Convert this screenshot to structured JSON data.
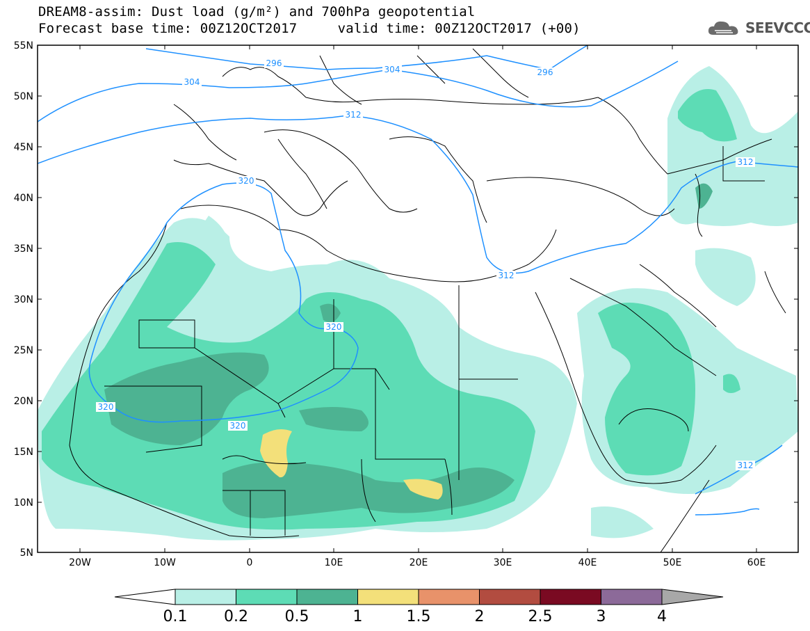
{
  "header": {
    "title_line1": "DREAM8-assim: Dust load (g/m²) and 700hPa geopotential",
    "title_line2": "Forecast base time: 00Z12OCT2017     valid time: 00Z12OCT2017 (+00)"
  },
  "logo": {
    "text": "SEEVCCC",
    "icon": "cloud-icon"
  },
  "map": {
    "lon_range": [
      -25,
      65
    ],
    "lat_range": [
      5,
      55
    ],
    "lat_labels": [
      "55N",
      "50N",
      "45N",
      "40N",
      "35N",
      "30N",
      "25N",
      "20N",
      "15N",
      "10N",
      "5N"
    ],
    "lon_labels": [
      "20W",
      "10W",
      "0",
      "10E",
      "20E",
      "30E",
      "40E",
      "50E",
      "60E"
    ],
    "contour_labels": [
      "296",
      "304",
      "296",
      "304",
      "312",
      "320",
      "312",
      "320",
      "320",
      "320",
      "312",
      "312"
    ]
  },
  "colorbar": {
    "labels": [
      "0.1",
      "0.2",
      "0.5",
      "1",
      "1.5",
      "2",
      "2.5",
      "3",
      "4"
    ],
    "colors": [
      "#ffffff",
      "#b9efe6",
      "#5ddcb5",
      "#4db392",
      "#f3e07a",
      "#e8926a",
      "#b24c40",
      "#7a0a22",
      "#8c6a99",
      "#a8a8a8"
    ]
  },
  "colors": {
    "contour": "#1e90ff",
    "land_border": "#000000",
    "frame": "#000000"
  }
}
